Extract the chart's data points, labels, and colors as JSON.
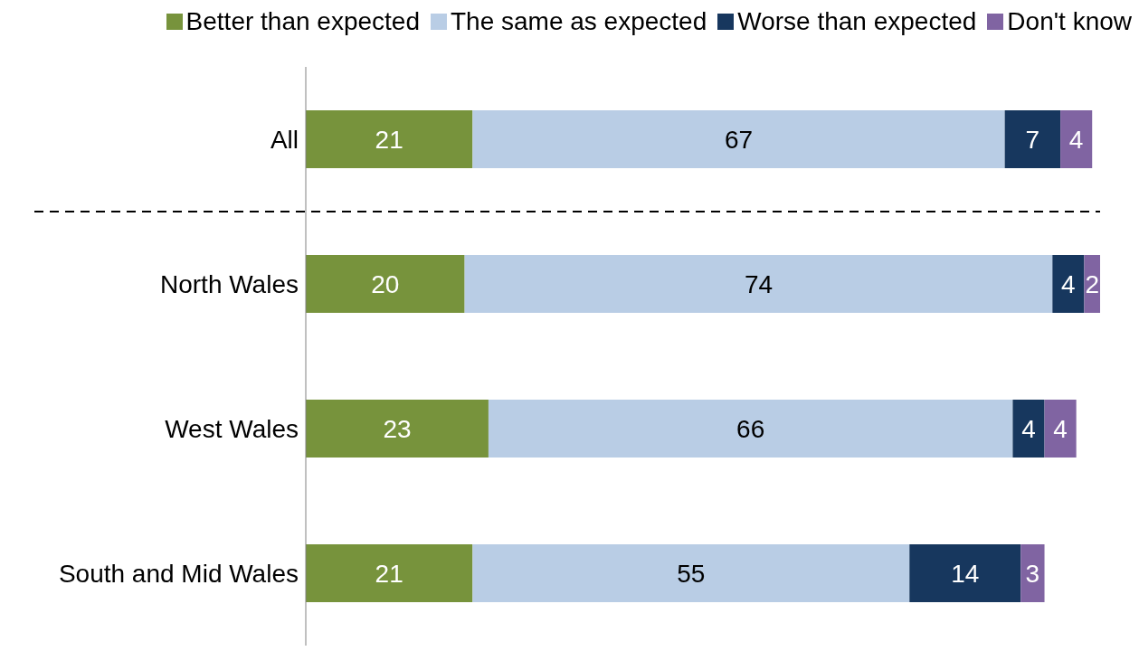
{
  "chart_data": {
    "type": "bar",
    "orientation": "horizontal",
    "stacked": true,
    "data_labels": true,
    "legend": "top",
    "tick_labels": "y",
    "categories": [
      "All",
      "North Wales",
      "West Wales",
      "South and Mid Wales"
    ],
    "series": [
      {
        "name": "Better than expected",
        "color": "#77933c",
        "values": [
          21,
          20,
          23,
          21
        ]
      },
      {
        "name": "The same as expected",
        "color": "#b9cde5",
        "values": [
          67,
          74,
          66,
          55
        ]
      },
      {
        "name": "Worse than expected",
        "color": "#17375e",
        "values": [
          7,
          4,
          4,
          14
        ]
      },
      {
        "name": "Don't know",
        "color": "#8064a2",
        "values": [
          4,
          2,
          4,
          3
        ]
      }
    ]
  }
}
